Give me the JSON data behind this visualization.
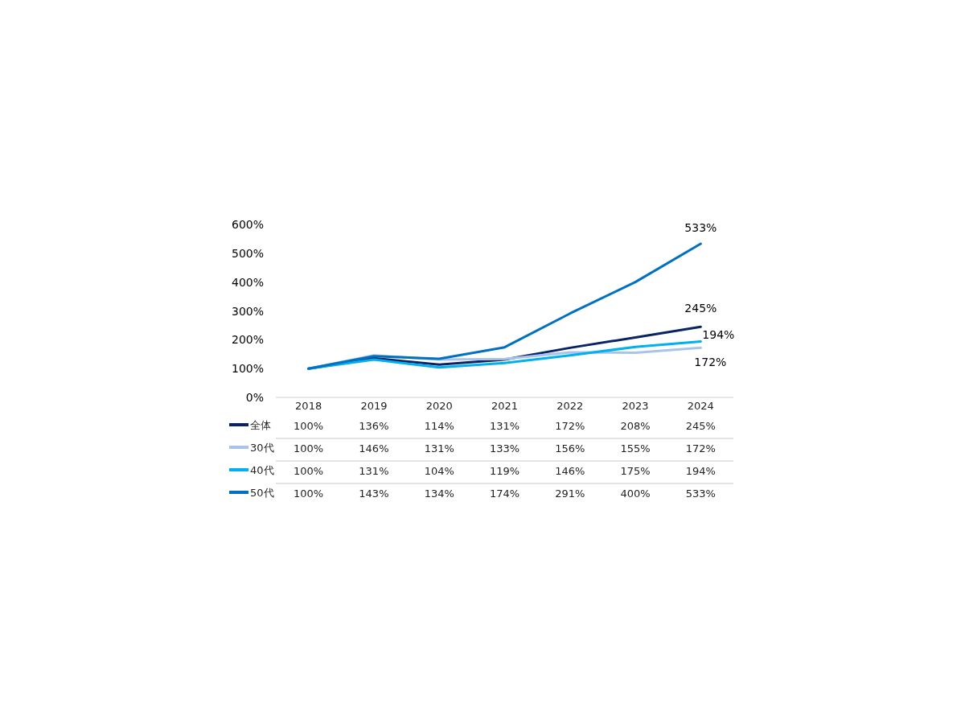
{
  "chart_data": {
    "type": "line",
    "categories": [
      "2018",
      "2019",
      "2020",
      "2021",
      "2022",
      "2023",
      "2024"
    ],
    "series": [
      {
        "name": "全体",
        "color": "#0a2463",
        "values": [
          100,
          136,
          114,
          131,
          172,
          208,
          245
        ],
        "value_labels": [
          "100%",
          "136%",
          "114%",
          "131%",
          "172%",
          "208%",
          "245%"
        ]
      },
      {
        "name": "30代",
        "color": "#a9c4eb",
        "values": [
          100,
          146,
          131,
          133,
          156,
          155,
          172
        ],
        "value_labels": [
          "100%",
          "146%",
          "131%",
          "133%",
          "156%",
          "155%",
          "172%"
        ]
      },
      {
        "name": "40代",
        "color": "#00b0f0",
        "values": [
          100,
          131,
          104,
          119,
          146,
          175,
          194
        ],
        "value_labels": [
          "100%",
          "131%",
          "104%",
          "119%",
          "146%",
          "175%",
          "194%"
        ]
      },
      {
        "name": "50代",
        "color": "#0070c0",
        "values": [
          100,
          143,
          134,
          174,
          291,
          400,
          533
        ],
        "value_labels": [
          "100%",
          "143%",
          "134%",
          "174%",
          "291%",
          "400%",
          "533%"
        ]
      }
    ],
    "ylim": [
      0,
      600
    ],
    "yticks": [
      {
        "value": 0,
        "label": "0%"
      },
      {
        "value": 100,
        "label": "100%"
      },
      {
        "value": 200,
        "label": "200%"
      },
      {
        "value": 300,
        "label": "300%"
      },
      {
        "value": 400,
        "label": "400%"
      },
      {
        "value": 500,
        "label": "500%"
      },
      {
        "value": 600,
        "label": "600%"
      }
    ],
    "legend": "bottom left",
    "annotations": [
      {
        "text": "533%",
        "x": "2024",
        "y": 533
      },
      {
        "text": "245%",
        "x": "2024",
        "y": 245
      },
      {
        "text": "194%",
        "x": "2024",
        "y": 194
      },
      {
        "text": "172%",
        "x": "2024",
        "y": 172
      }
    ]
  }
}
